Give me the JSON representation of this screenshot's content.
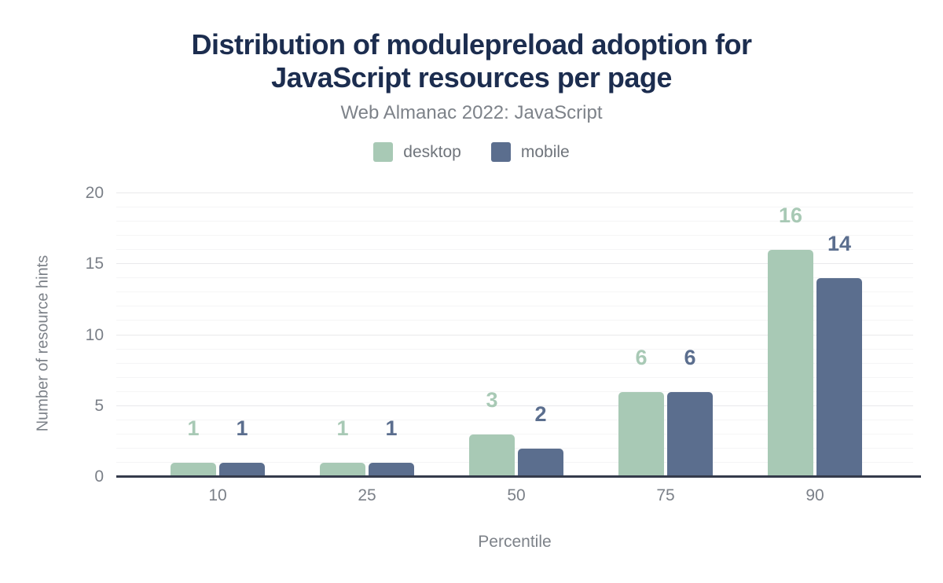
{
  "header": {
    "title_lines": [
      "Distribution of modulepreload adoption for",
      "JavaScript resources per page"
    ],
    "subtitle": "Web Almanac 2022: JavaScript"
  },
  "chart_data": {
    "type": "bar",
    "title": "Distribution of modulepreload adoption for JavaScript resources per page",
    "subtitle": "Web Almanac 2022: JavaScript",
    "categories": [
      "10",
      "25",
      "50",
      "75",
      "90"
    ],
    "series": [
      {
        "name": "desktop",
        "color": "#a8c9b5",
        "values": [
          1,
          1,
          3,
          6,
          16
        ]
      },
      {
        "name": "mobile",
        "color": "#5b6e8e",
        "values": [
          1,
          1,
          2,
          6,
          14
        ]
      }
    ],
    "xlabel": "Percentile",
    "ylabel": "Number of resource hints",
    "ylim": [
      0,
      20
    ],
    "yticks": [
      0,
      5,
      10,
      15,
      20
    ],
    "grid": "horizontal minor every 1, major every 5",
    "legend_position": "top",
    "data_labels": true
  },
  "colors": {
    "title": "#1c2d4f",
    "muted_text": "#7d8289",
    "tick_text": "#7b8088",
    "axis_line": "#353b4b",
    "gridline_major": "#e9e9eb",
    "gridline_minor": "#f5f5f6",
    "background": "#ffffff"
  }
}
